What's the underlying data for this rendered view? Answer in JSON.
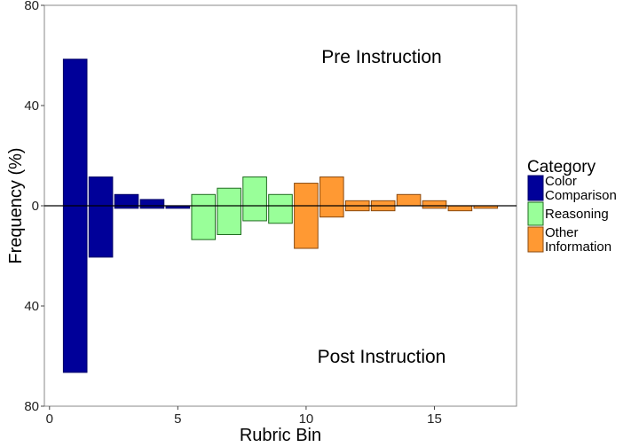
{
  "chart_data": {
    "type": "bar",
    "subtype": "diverging",
    "xlabel": "Rubric Bin",
    "ylabel": "Frequency (%)",
    "x_ticks": [
      0,
      5,
      10,
      15
    ],
    "xlim": [
      -0.2,
      18.2
    ],
    "y_ticks": [
      80,
      40,
      0,
      40,
      80
    ],
    "ylim": [
      -80,
      80
    ],
    "grid": false,
    "annotations": {
      "top": "Pre Instruction",
      "bottom": "Post Instruction"
    },
    "legend": {
      "title": "Category",
      "position": "right",
      "items": [
        {
          "label_lines": [
            "Color",
            "Comparison"
          ],
          "color": "#000099"
        },
        {
          "label_lines": [
            "Reasoning"
          ],
          "color": "#99FF99"
        },
        {
          "label_lines": [
            "Other",
            "Information"
          ],
          "color": "#FF9933"
        }
      ]
    },
    "series": [
      {
        "name": "Color Comparison",
        "color": "#000099",
        "outline": "#000066",
        "bins": [
          1,
          2,
          3,
          4,
          5
        ],
        "pre": [
          58.5,
          11.5,
          4.5,
          2.5,
          0
        ],
        "post": [
          66.5,
          20.5,
          1,
          1,
          1
        ]
      },
      {
        "name": "Reasoning",
        "color": "#99FF99",
        "outline": "#1F6B1F",
        "bins": [
          6,
          7,
          8,
          9
        ],
        "pre": [
          4.5,
          7,
          11.5,
          4.5
        ],
        "post": [
          13.5,
          11.5,
          6,
          7
        ]
      },
      {
        "name": "Other Information",
        "color": "#FF9933",
        "outline": "#8A4A10",
        "bins": [
          10,
          11,
          12,
          13,
          14,
          15,
          16,
          17
        ],
        "pre": [
          9,
          11.5,
          2,
          2,
          4.5,
          2,
          0,
          0
        ],
        "post": [
          17,
          4.5,
          2,
          2,
          0,
          1,
          2,
          1
        ]
      }
    ]
  }
}
